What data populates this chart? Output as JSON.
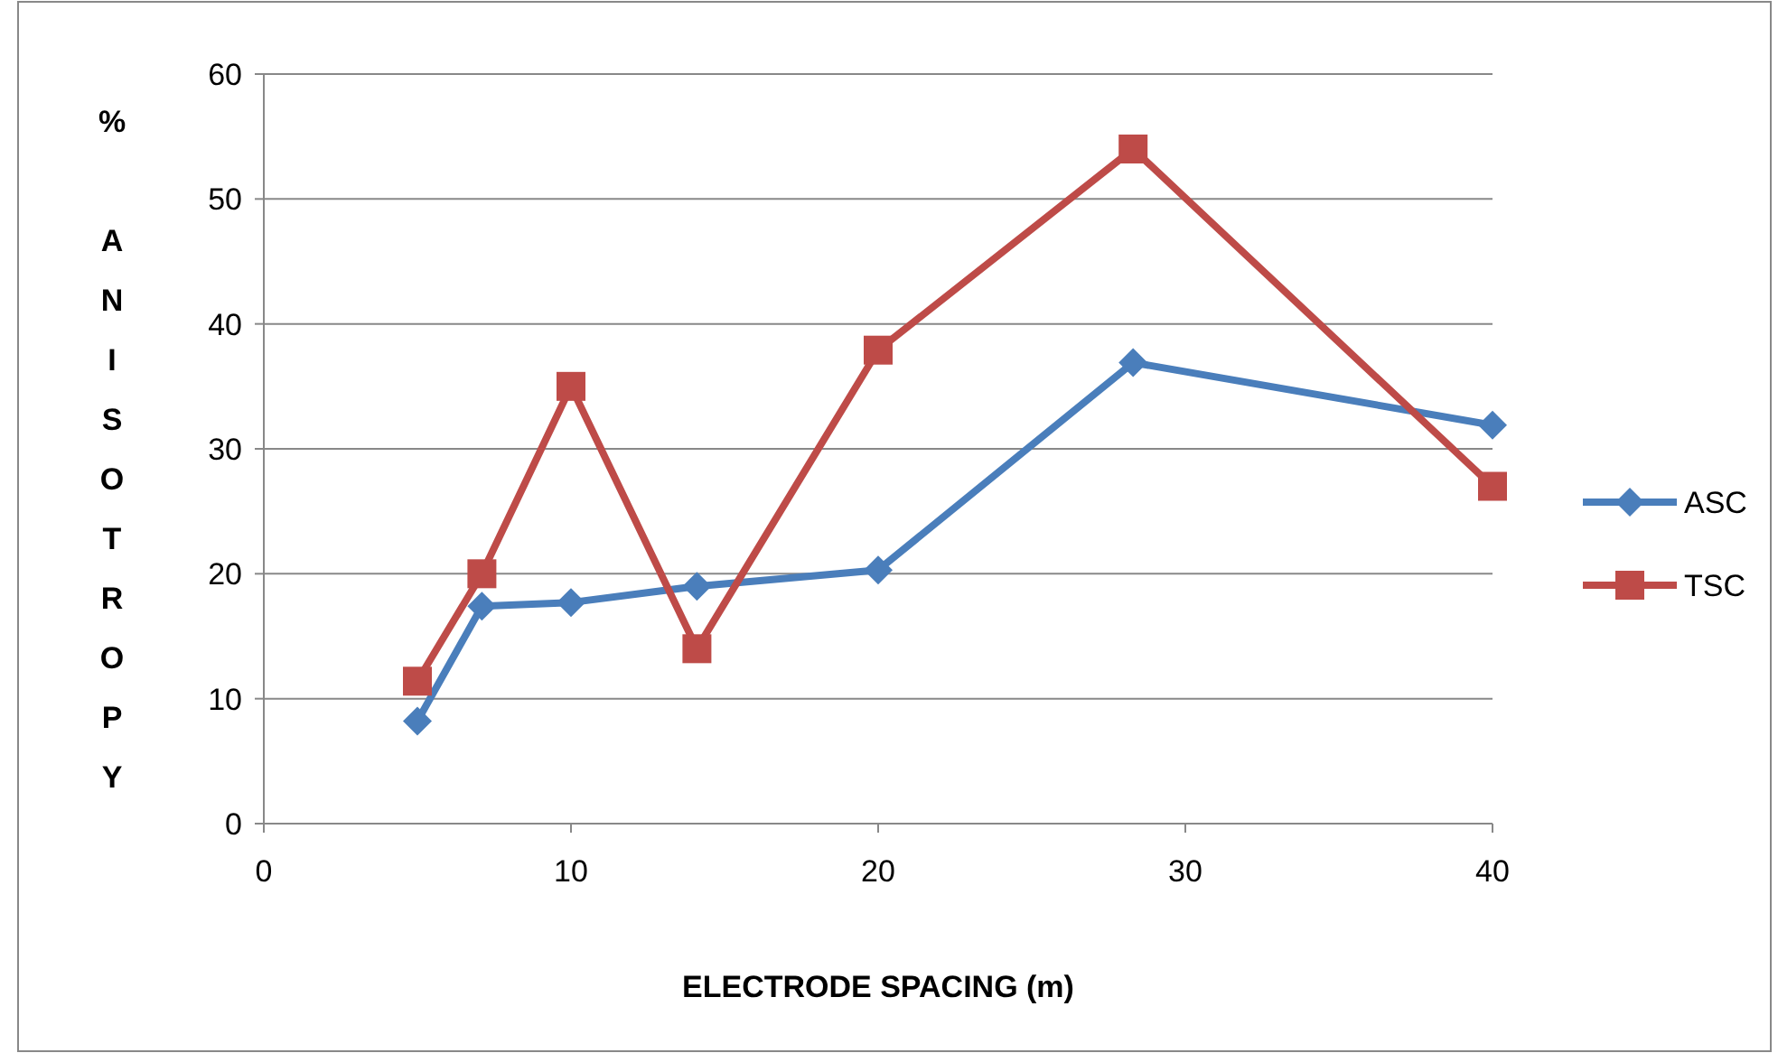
{
  "chart_data": {
    "type": "line",
    "xlabel": "ELECTRODE SPACING (m)",
    "ylabel": "% ANISOTROPY",
    "x": [
      5,
      7.1,
      10,
      14.1,
      20,
      28.3,
      40
    ],
    "xlim": [
      0,
      40
    ],
    "xticks": [
      0,
      10,
      20,
      30,
      40
    ],
    "ylim": [
      0,
      60
    ],
    "yticks": [
      0,
      10,
      20,
      30,
      40,
      50,
      60
    ],
    "grid": "y",
    "legend": "right",
    "line_style": "solid",
    "series": [
      {
        "name": "ASC",
        "color": "#4a7ebb",
        "marker": "diamond",
        "values": [
          8.2,
          17.4,
          17.7,
          19.0,
          20.3,
          36.9,
          31.9
        ]
      },
      {
        "name": "TSC",
        "color": "#be4b48",
        "marker": "square",
        "values": [
          11.4,
          20.0,
          35.0,
          14.0,
          37.9,
          54.0,
          27.0
        ]
      }
    ]
  }
}
